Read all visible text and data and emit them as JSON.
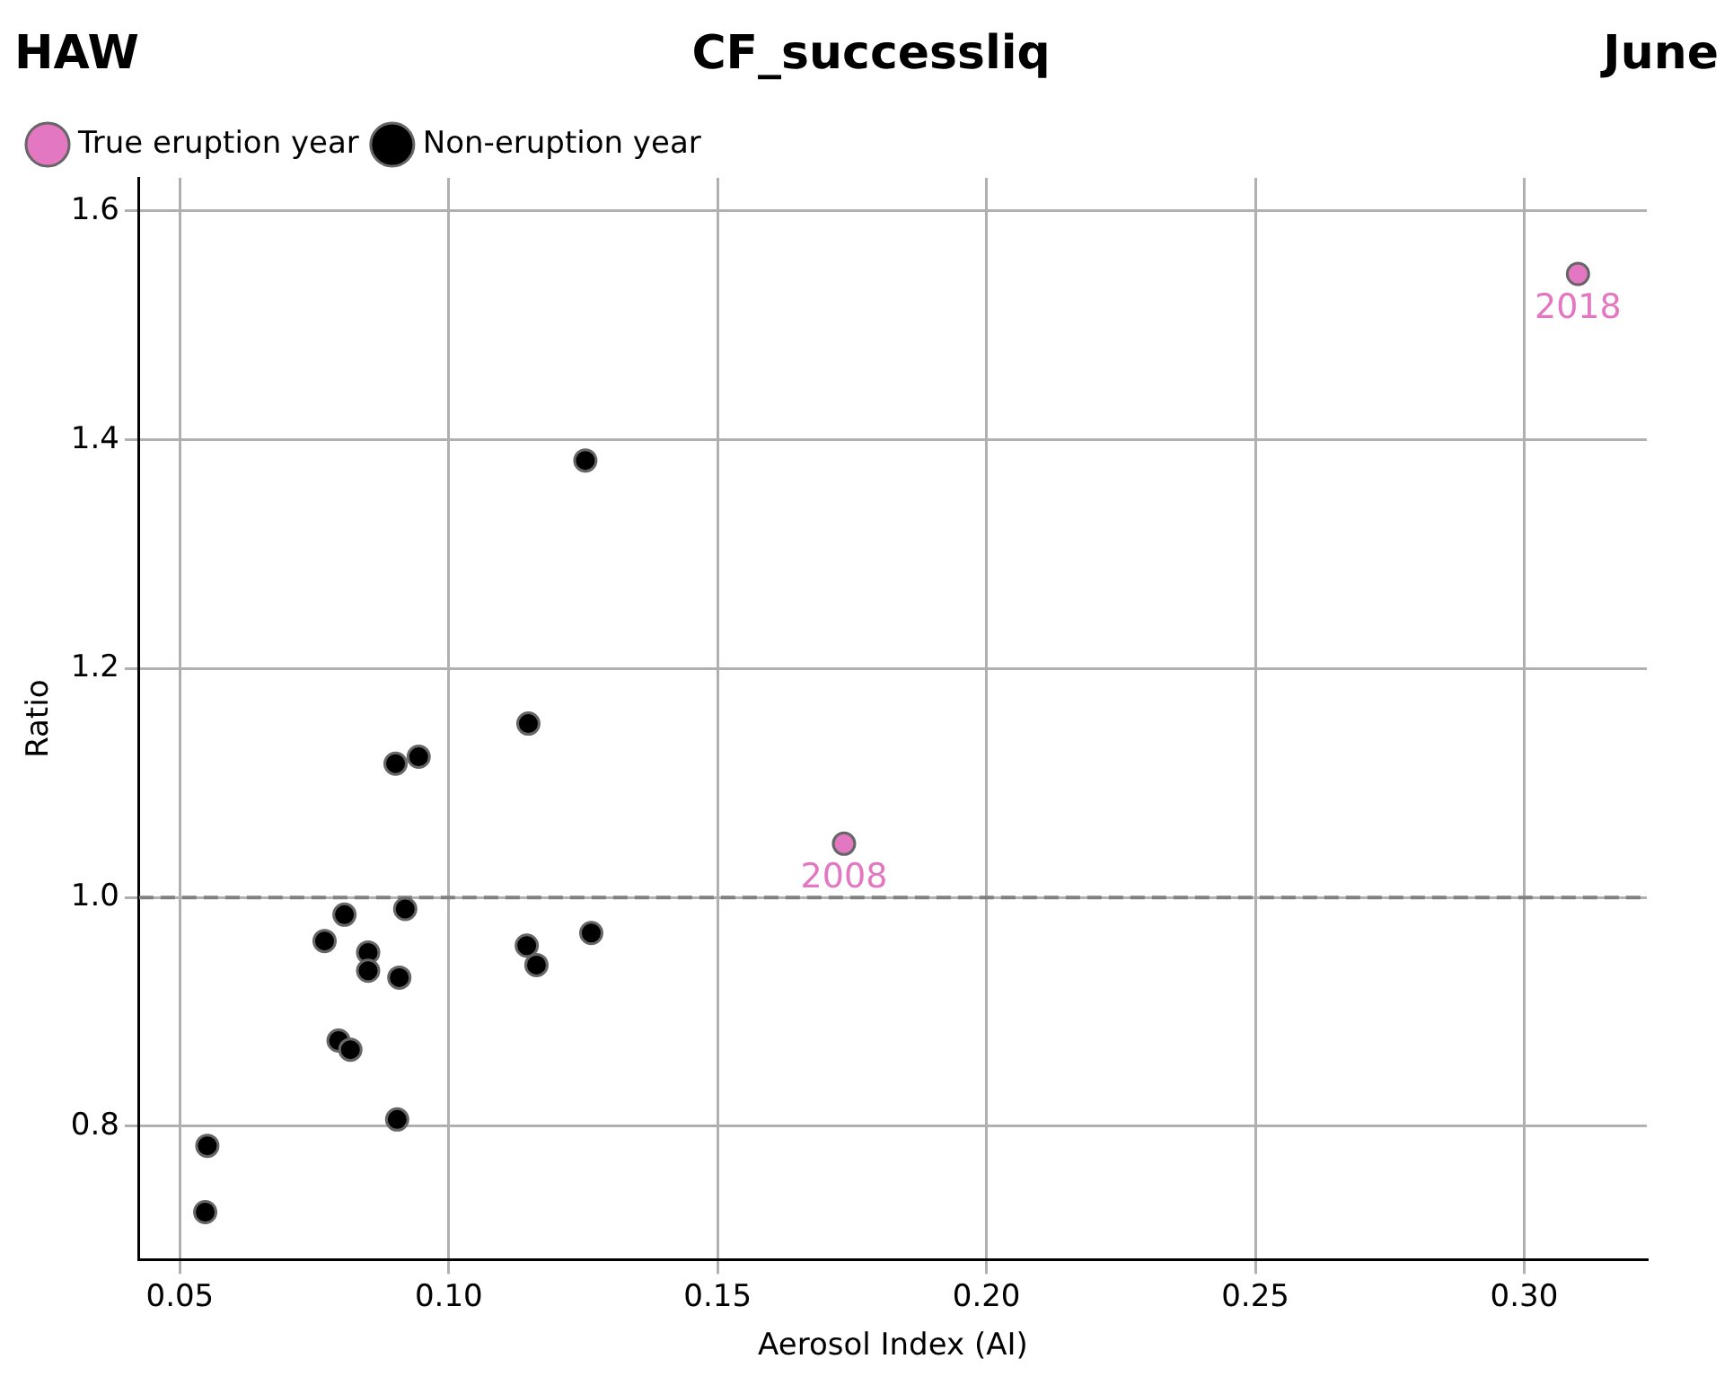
{
  "chart_data": {
    "type": "scatter",
    "title": "CF_successliq",
    "annotations": [
      "HAW",
      "June",
      {
        "text": "2008",
        "x": 0.1735,
        "y": 1.047
      },
      {
        "text": "2018",
        "x": 0.31,
        "y": 1.545
      }
    ],
    "xlabel": "Aerosol Index (AI)",
    "ylabel": "Ratio",
    "series": [
      {
        "name": "True eruption year",
        "color": "#e377c2",
        "x": [
          0.1735,
          0.31
        ],
        "values": [
          1.047,
          1.545
        ]
      },
      {
        "name": "Non-eruption year",
        "color": "#000000",
        "x": [
          0.1254,
          0.1148,
          0.0944,
          0.0901,
          0.0806,
          0.0919,
          0.0769,
          0.085,
          0.085,
          0.0908,
          0.1145,
          0.1163,
          0.1265,
          0.0795,
          0.0817,
          0.0904,
          0.0551,
          0.0547
        ],
        "values": [
          1.382,
          1.152,
          1.123,
          1.117,
          0.985,
          0.99,
          0.962,
          0.952,
          0.936,
          0.93,
          0.958,
          0.941,
          0.969,
          0.875,
          0.867,
          0.806,
          0.783,
          0.725
        ]
      }
    ],
    "xlim": [
      0.0424,
      0.3228
    ],
    "ylim": [
      0.6835,
      1.629
    ],
    "xticks": [
      0.05,
      {
        "value": 0.1,
        "label": "0.10"
      },
      0.15,
      {
        "value": 0.2,
        "label": "0.20"
      },
      0.25,
      {
        "value": 0.3,
        "label": "0.30"
      }
    ],
    "yticks": [
      0.8,
      {
        "value": 1,
        "label": "1.0"
      },
      1.2,
      1.4,
      1.6
    ],
    "ref_lines": [
      {
        "axis": "y",
        "value": 1.0,
        "color": "#808080",
        "line_style": "dashed"
      }
    ],
    "grid": true,
    "legend": "top left",
    "marker": "circle"
  }
}
